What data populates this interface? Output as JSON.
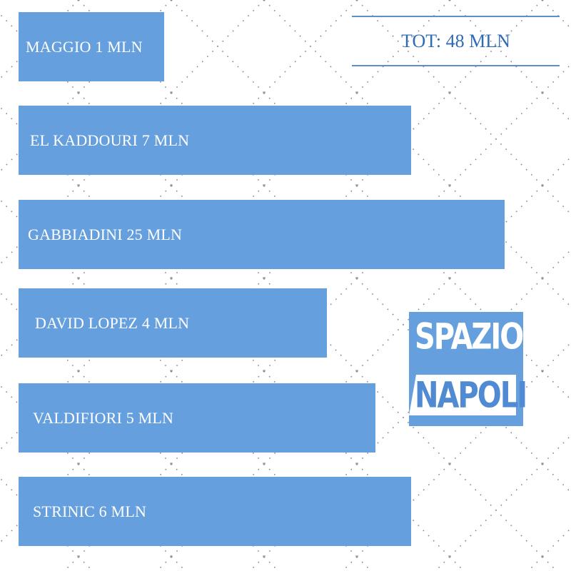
{
  "chart_data": {
    "type": "bar",
    "orientation": "horizontal",
    "categories": [
      "MAGGIO",
      "EL KADDOURI",
      "GABBIADINI",
      "DAVID LOPEZ",
      "VALDIFIORI",
      "STRINIC"
    ],
    "values": [
      1,
      7,
      25,
      4,
      5,
      6
    ],
    "unit": "MLN",
    "labels": [
      "MAGGIO 1 MLN",
      "EL KADDOURI 7 MLN",
      "GABBIADINI 25 MLN",
      "DAVID LOPEZ 4 MLN",
      "VALDIFIORI 5 MLN",
      "STRINIC 6 MLN"
    ],
    "grid": false,
    "bar_color": "#659fde"
  },
  "total": {
    "label": "TOT: 48 MLN",
    "color": "#2f6bb5"
  },
  "logo": {
    "line1": "SPAZIO",
    "line2": "NAPOLI"
  }
}
